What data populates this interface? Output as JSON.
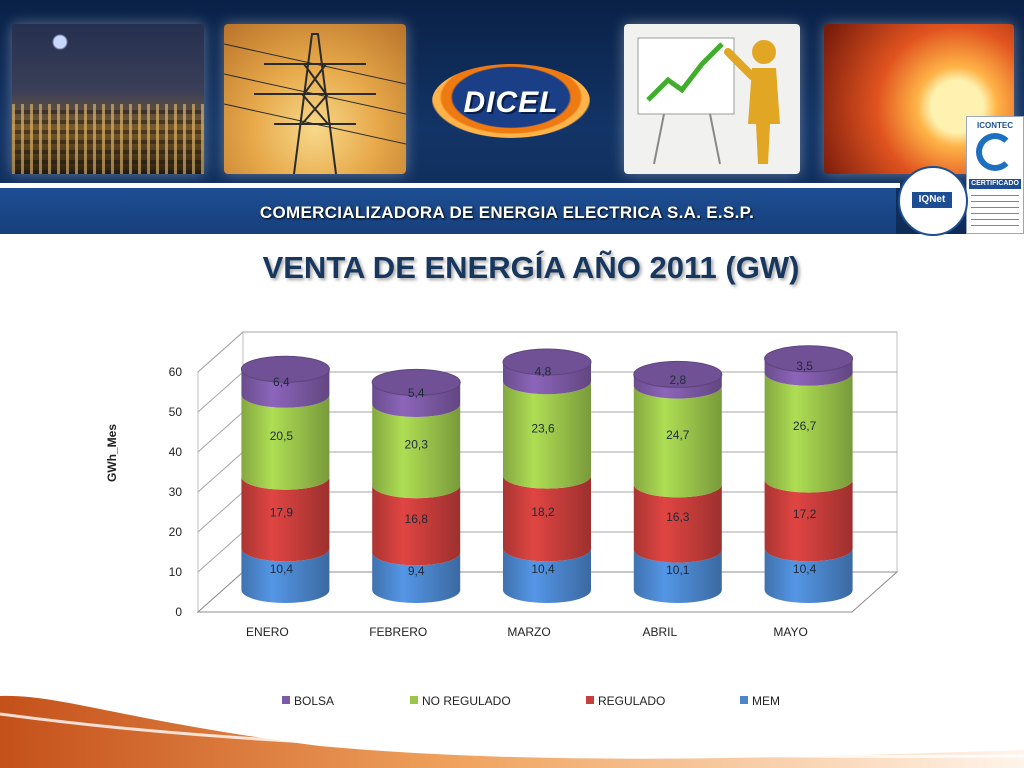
{
  "header": {
    "logo_text": "DICEL",
    "company_name": "COMERCIALIZADORA DE ENERGIA ELECTRICA S.A. E.S.P.",
    "cert_iqnet_label": "IQNet",
    "cert_icontec_label": "ICONTEC",
    "cert_icontec_band": "CERTIFICADO"
  },
  "slide": {
    "title": "VENTA DE ENERGÍA  AÑO 2011 (GW)"
  },
  "colors": {
    "bolsa": "#7d5aa6",
    "no_regulado": "#9bc64b",
    "regulado": "#c83e3b",
    "mem": "#4b86cd",
    "title": "#17375e",
    "banner": "#123466",
    "accent_orange": "#e8761a"
  },
  "chart_data": {
    "type": "bar",
    "stacked": true,
    "style": "3d-cylinder",
    "categories": [
      "ENERO",
      "FEBRERO",
      "MARZO",
      "ABRIL",
      "MAYO"
    ],
    "series": [
      {
        "name": "MEM",
        "values": [
          10.4,
          9.4,
          10.4,
          10.1,
          10.4
        ],
        "labels": [
          "10,4",
          "9,4",
          "10,4",
          "10,1",
          "10,4"
        ]
      },
      {
        "name": "REGULADO",
        "values": [
          17.9,
          16.8,
          18.2,
          16.3,
          17.2
        ],
        "labels": [
          "17,9",
          "16,8",
          "18,2",
          "16,3",
          "17,2"
        ]
      },
      {
        "name": "NO REGULADO",
        "values": [
          20.5,
          20.3,
          23.6,
          24.7,
          26.7
        ],
        "labels": [
          "20,5",
          "20,3",
          "23,6",
          "24,7",
          "26,7"
        ]
      },
      {
        "name": "BOLSA",
        "values": [
          6.4,
          5.4,
          4.8,
          2.8,
          3.5
        ],
        "labels": [
          "6,4",
          "5,4",
          "4,8",
          "2,8",
          "3,5"
        ]
      }
    ],
    "legend_order": [
      "BOLSA",
      "NO REGULADO",
      "REGULADO",
      "MEM"
    ],
    "ylabel": "GWh_Mes",
    "xlabel": "",
    "ylim": [
      0,
      60
    ],
    "yticks": [
      "0",
      "10",
      "20",
      "30",
      "40",
      "50",
      "60"
    ],
    "grid": true,
    "legend_position": "bottom"
  }
}
